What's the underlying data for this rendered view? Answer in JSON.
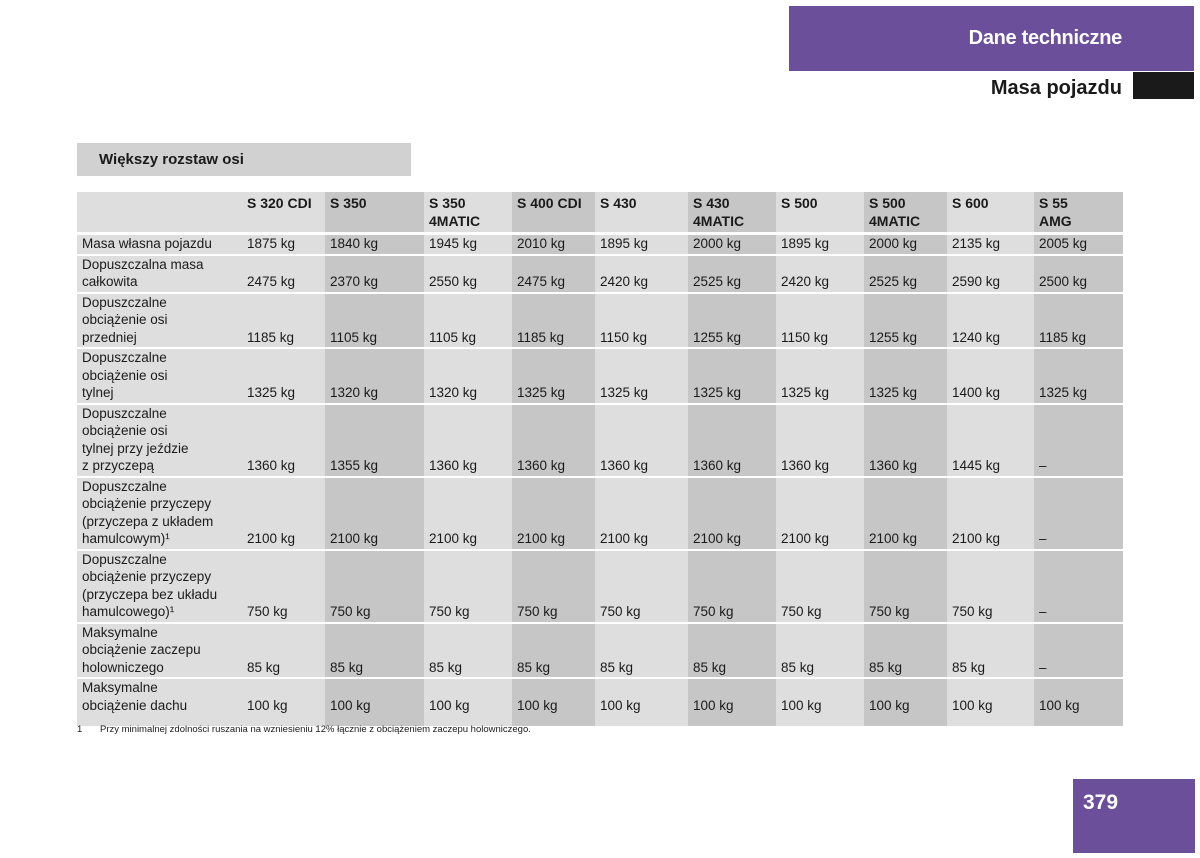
{
  "header": {
    "section": "Dane techniczne",
    "subsection": "Masa pojazdu"
  },
  "section_title": "Większy rozstaw osi",
  "table": {
    "columns": [
      {
        "line1": "S 320 CDI",
        "line2": ""
      },
      {
        "line1": "S 350",
        "line2": ""
      },
      {
        "line1": "S 350",
        "line2": "4MATIC"
      },
      {
        "line1": "S 400 CDI",
        "line2": ""
      },
      {
        "line1": "S 430",
        "line2": ""
      },
      {
        "line1": "S 430",
        "line2": "4MATIC"
      },
      {
        "line1": "S 500",
        "line2": ""
      },
      {
        "line1": "S 500",
        "line2": "4MATIC"
      },
      {
        "line1": "S 600",
        "line2": ""
      },
      {
        "line1": "S 55",
        "line2": "AMG"
      }
    ],
    "rows": [
      {
        "label": [
          "Masa własna pojazdu"
        ],
        "values": [
          "1875 kg",
          "1840 kg",
          "1945 kg",
          "2010 kg",
          "1895 kg",
          "2000 kg",
          "1895 kg",
          "2000 kg",
          "2135 kg",
          "2005 kg"
        ]
      },
      {
        "label": [
          "Dopuszczalna masa",
          "całkowita"
        ],
        "values": [
          "2475 kg",
          "2370 kg",
          "2550 kg",
          "2475 kg",
          "2420 kg",
          "2525 kg",
          "2420 kg",
          "2525 kg",
          "2590 kg",
          "2500 kg"
        ]
      },
      {
        "label": [
          "Dopuszczalne",
          "obciążenie osi",
          "przedniej"
        ],
        "values": [
          "1185 kg",
          "1105 kg",
          "1105 kg",
          "1185 kg",
          "1150 kg",
          "1255 kg",
          "1150 kg",
          "1255 kg",
          "1240 kg",
          "1185 kg"
        ]
      },
      {
        "label": [
          "Dopuszczalne",
          "obciążenie osi",
          "tylnej"
        ],
        "values": [
          "1325 kg",
          "1320 kg",
          "1320 kg",
          "1325 kg",
          "1325 kg",
          "1325 kg",
          "1325 kg",
          "1325 kg",
          "1400 kg",
          "1325 kg"
        ]
      },
      {
        "label": [
          "Dopuszczalne",
          "obciążenie osi",
          "tylnej przy jeździe",
          "z przyczepą"
        ],
        "values": [
          "1360 kg",
          "1355 kg",
          "1360 kg",
          "1360 kg",
          "1360 kg",
          "1360 kg",
          "1360 kg",
          "1360 kg",
          "1445 kg",
          "–"
        ]
      },
      {
        "label": [
          "Dopuszczalne",
          "obciążenie przyczepy",
          "(przyczepa z układem",
          "hamulcowym)¹"
        ],
        "values": [
          "2100 kg",
          "2100 kg",
          "2100 kg",
          "2100 kg",
          "2100 kg",
          "2100 kg",
          "2100 kg",
          "2100 kg",
          "2100 kg",
          "–"
        ]
      },
      {
        "label": [
          "Dopuszczalne",
          "obciążenie przyczepy",
          "(przyczepa bez układu",
          "hamulcowego)¹"
        ],
        "values": [
          "750 kg",
          "750 kg",
          "750 kg",
          "750 kg",
          "750 kg",
          "750 kg",
          "750 kg",
          "750 kg",
          "750 kg",
          "–"
        ]
      },
      {
        "label": [
          "Maksymalne",
          "obciążenie zaczepu",
          "holowniczego"
        ],
        "values": [
          "85 kg",
          "85 kg",
          "85 kg",
          "85 kg",
          "85 kg",
          "85 kg",
          "85 kg",
          "85 kg",
          "85 kg",
          "–"
        ]
      },
      {
        "label": [
          "Maksymalne",
          "obciążenie dachu"
        ],
        "values": [
          "100 kg",
          "100 kg",
          "100 kg",
          "100 kg",
          "100 kg",
          "100 kg",
          "100 kg",
          "100 kg",
          "100 kg",
          "100 kg"
        ]
      }
    ]
  },
  "footnote": {
    "number": "1",
    "text": "Przy minimalnej zdolności ruszania na wzniesieniu 12%  łącznie z obciążeniem zaczepu holowniczego."
  },
  "page_number": "379",
  "colors": {
    "accent": "#6b4f9a",
    "cell_light": "#dedede",
    "cell_dark": "#c6c6c6",
    "section_bg": "#d1d1d1"
  }
}
